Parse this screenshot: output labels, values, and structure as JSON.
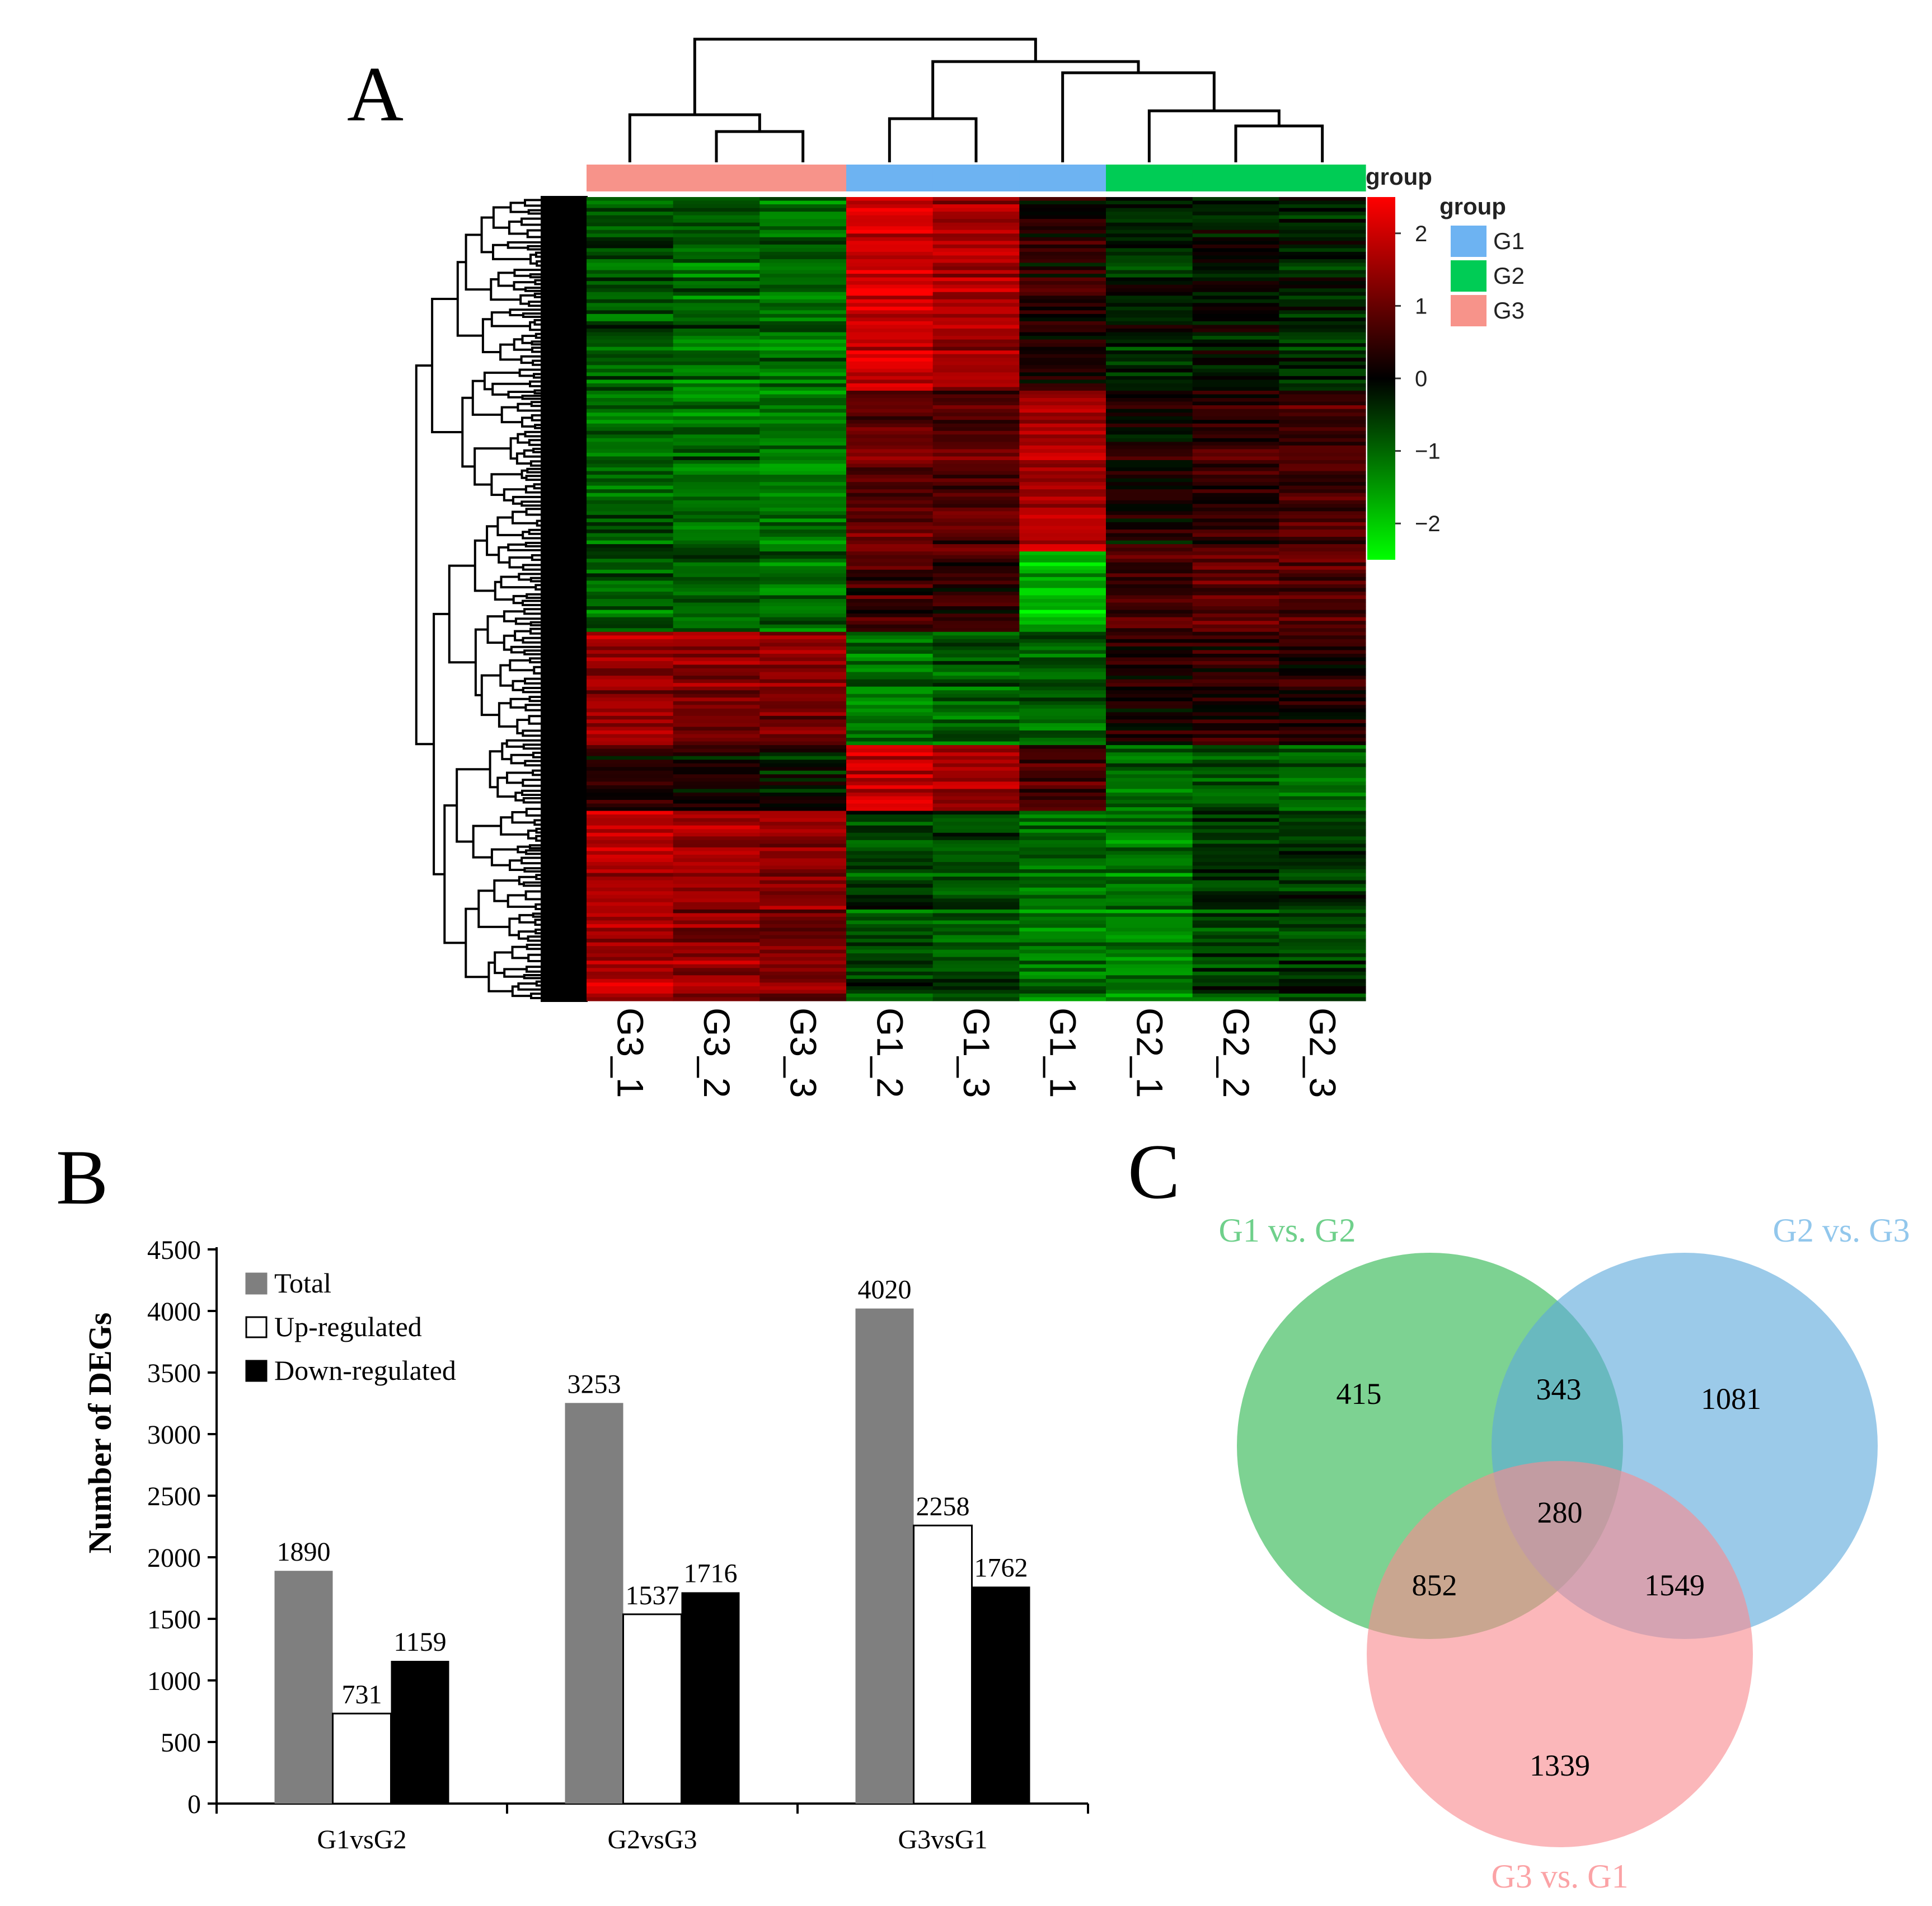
{
  "panels": {
    "a": {
      "letter": "A"
    },
    "b": {
      "letter": "B"
    },
    "c": {
      "letter": "C"
    }
  },
  "chart_data": [
    {
      "type": "heatmap",
      "panel": "A",
      "columns": [
        "G3_1",
        "G3_2",
        "G3_3",
        "G1_2",
        "G1_3",
        "G1_1",
        "G2_1",
        "G2_2",
        "G2_3"
      ],
      "column_groups": [
        "G3",
        "G3",
        "G3",
        "G1",
        "G1",
        "G1",
        "G2",
        "G2",
        "G2"
      ],
      "annotation_label": "group",
      "legend": {
        "title": "group",
        "entries": [
          {
            "label": "G1",
            "color": "#6db3f2"
          },
          {
            "label": "G2",
            "color": "#00cc55"
          },
          {
            "label": "G3",
            "color": "#f7938a"
          }
        ]
      },
      "colorbar": {
        "min": -2.5,
        "max": 2.5,
        "ticks": [
          "2",
          "1",
          "0",
          "−1",
          "−2"
        ],
        "tick_values": [
          2,
          1,
          0,
          -1,
          -2
        ],
        "low_color": "#00ff00",
        "mid_color": "#000000",
        "high_color": "#ff0000"
      },
      "row_dendrogram": true,
      "column_dendrogram": true,
      "block_profiles": [
        {
          "rows": 0.24,
          "values": [
            -0.8,
            -1.0,
            -1.1,
            2.0,
            1.6,
            0.3,
            -0.4,
            -0.2,
            -0.3
          ]
        },
        {
          "rows": 0.2,
          "values": [
            -0.9,
            -1.0,
            -1.1,
            1.0,
            0.9,
            1.8,
            0.2,
            0.6,
            0.8
          ]
        },
        {
          "rows": 0.1,
          "values": [
            -1.0,
            -1.0,
            -1.1,
            0.6,
            0.4,
            -1.8,
            0.6,
            0.9,
            0.7
          ]
        },
        {
          "rows": 0.14,
          "values": [
            1.4,
            1.3,
            1.2,
            -1.2,
            -1.0,
            -1.0,
            0.2,
            0.4,
            0.3
          ]
        },
        {
          "rows": 0.08,
          "values": [
            0.3,
            0.1,
            -0.2,
            1.9,
            1.4,
            0.6,
            -1.0,
            -0.9,
            -1.0
          ]
        },
        {
          "rows": 0.24,
          "values": [
            1.7,
            1.4,
            1.3,
            -0.7,
            -0.8,
            -1.2,
            -1.2,
            -0.6,
            -0.6
          ]
        }
      ]
    },
    {
      "type": "bar",
      "panel": "B",
      "categories": [
        "G1vsG2",
        "G2vsG3",
        "G3vsG1"
      ],
      "series": [
        {
          "name": "Total",
          "color": "#7f7f7f",
          "values": [
            1890,
            3253,
            4020
          ]
        },
        {
          "name": "Up-regulated",
          "color": "#ffffff",
          "values": [
            731,
            1537,
            2258
          ]
        },
        {
          "name": "Down-regulated",
          "color": "#000000",
          "values": [
            1159,
            1716,
            1762
          ]
        }
      ],
      "ylabel": "Number of DEGs",
      "ylim": [
        0,
        4500
      ],
      "yticks": [
        0,
        500,
        1000,
        1500,
        2000,
        2500,
        3000,
        3500,
        4000,
        4500
      ],
      "legend_position": "top-left"
    },
    {
      "type": "venn",
      "panel": "C",
      "sets": [
        {
          "name": "G1 vs. G2",
          "color": "#2db64f",
          "label_color": "#6fd08b"
        },
        {
          "name": "G2 vs. G3",
          "color": "#5ea9dc",
          "label_color": "#92c7ec"
        },
        {
          "name": "G3 vs. G1",
          "color": "#f98a8f",
          "label_color": "#fba3a6"
        }
      ],
      "regions": {
        "only_1": 415,
        "only_2": 1081,
        "only_3": 1339,
        "1_2": 343,
        "1_3": 852,
        "2_3": 1549,
        "1_2_3": 280
      }
    }
  ]
}
